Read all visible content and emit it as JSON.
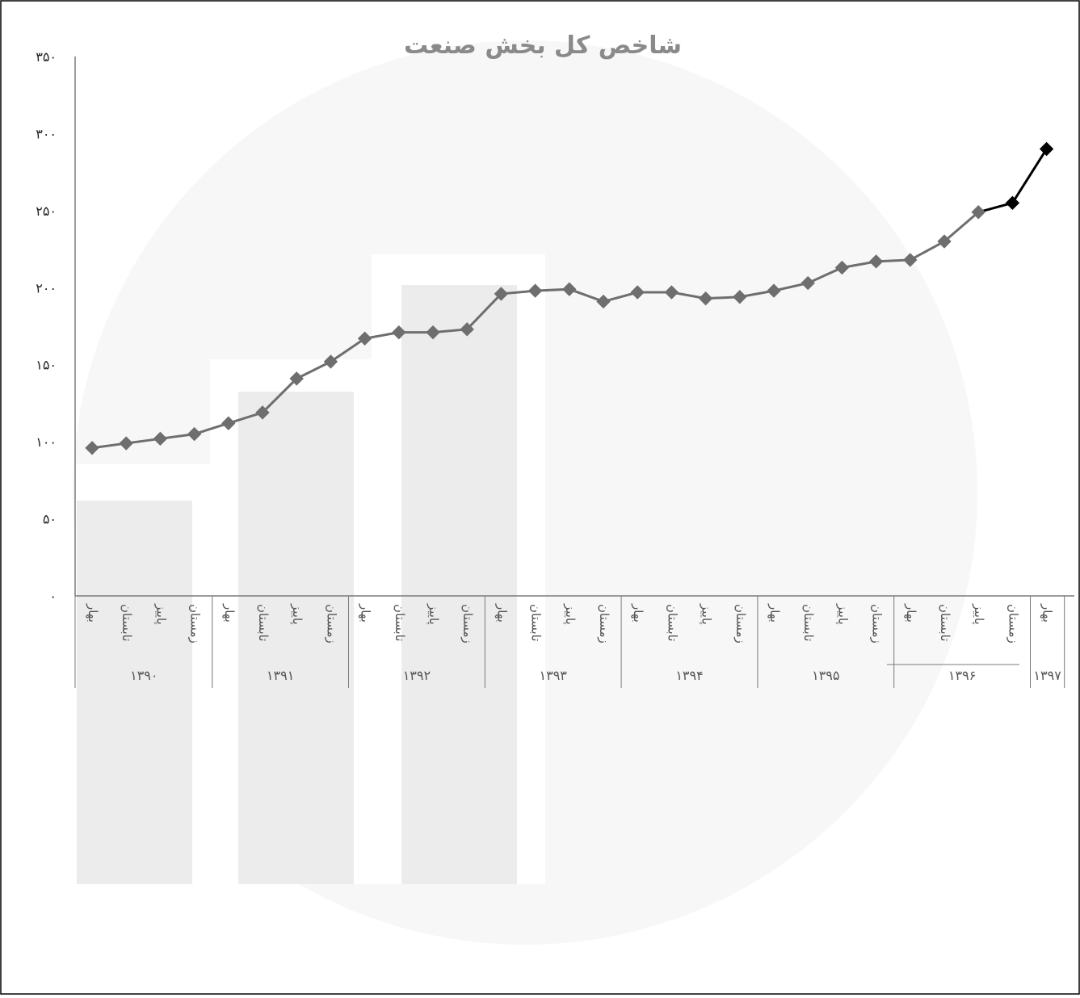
{
  "chart_data": {
    "type": "line",
    "title": "شاخص کل بخش صنعت",
    "ylim": [
      0,
      350
    ],
    "yticks": [
      "۰",
      "۵۰",
      "۱۰۰",
      "۱۵۰",
      "۲۰۰",
      "۲۵۰",
      "۳۰۰",
      "۳۵۰"
    ],
    "grid": false,
    "legend": "none",
    "year_groups": [
      {
        "label": "۱۳۹۰",
        "quarters": [
          "بهار",
          "تابستان",
          "پاییز",
          "زمستان"
        ]
      },
      {
        "label": "۱۳۹۱",
        "quarters": [
          "بهار",
          "تابستان",
          "پاییز",
          "زمستان"
        ]
      },
      {
        "label": "۱۳۹۲",
        "quarters": [
          "بهار",
          "تابستان",
          "پاییز",
          "زمستان"
        ]
      },
      {
        "label": "۱۳۹۳",
        "quarters": [
          "بهار",
          "تابستان",
          "پاییز",
          "زمستان"
        ]
      },
      {
        "label": "۱۳۹۴",
        "quarters": [
          "بهار",
          "تابستان",
          "پاییز",
          "زمستان"
        ]
      },
      {
        "label": "۱۳۹۵",
        "quarters": [
          "بهار",
          "تابستان",
          "پاییز",
          "زمستان"
        ]
      },
      {
        "label": "۱۳۹۶",
        "quarters": [
          "بهار",
          "تابستان",
          "پاییز",
          "زمستان"
        ]
      },
      {
        "label": "۱۳۹۷",
        "quarters": [
          "بهار"
        ]
      }
    ],
    "values": [
      96,
      99,
      102,
      105,
      112,
      119,
      141,
      152,
      167,
      171,
      171,
      173,
      196,
      198,
      199,
      191,
      197,
      197,
      193,
      194,
      198,
      203,
      213,
      217,
      218,
      230,
      249,
      255,
      290
    ],
    "highlight_from_index": 26,
    "colors": {
      "line": "#6e6e6e",
      "marker": "#6e6e6e",
      "highlight": "#000000",
      "axis": "#7a7a7a",
      "title": "#8a8a8a",
      "watermark": "#f3f3f3"
    }
  }
}
